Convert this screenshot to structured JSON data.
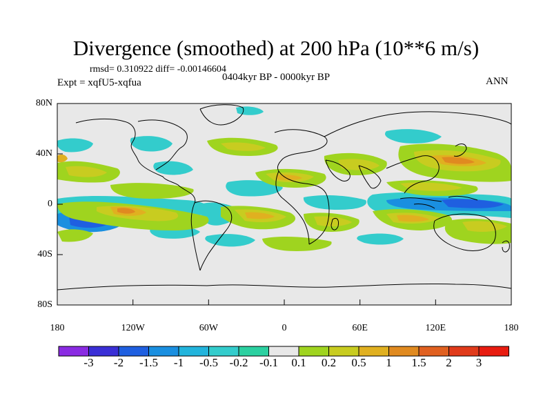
{
  "title": "Divergence (smoothed) at 200 hPa (10**6 m/s)",
  "stats": "rmsd= 0.310922 diff= -0.00146604",
  "experiment": "Expt = xqfU5-xqfua",
  "period": "0404kyr BP - 0000kyr BP",
  "season": "ANN",
  "lat_labels": [
    "80N",
    "40N",
    "0",
    "40S",
    "80S"
  ],
  "lon_labels": [
    "180",
    "120W",
    "60W",
    "0",
    "60E",
    "120E",
    "180"
  ],
  "colorbar": {
    "labels": [
      "-3",
      "-2",
      "-1.5",
      "-1",
      "-0.5",
      "-0.2",
      "-0.1",
      "0.1",
      "0.2",
      "0.5",
      "1",
      "1.5",
      "2",
      "3"
    ],
    "colors": [
      "#8a2be2",
      "#3a2fd6",
      "#1f5fe0",
      "#1a8fe0",
      "#22b4dc",
      "#33cccc",
      "#2bd0a0",
      "#e8e8e8",
      "#9fd41f",
      "#c8cc20",
      "#e0b020",
      "#e08a20",
      "#e06020",
      "#e03a1a",
      "#e81c10"
    ]
  },
  "field_colors": {
    "background": "#e8e8e8",
    "neg_light": "#33cccc",
    "neg_mid": "#1a8fe0",
    "neg_strong": "#1f5fe0",
    "pos_light": "#9fd41f",
    "pos_mid": "#c8cc20",
    "pos_strong": "#e0b020",
    "pos_vstrong": "#e08a20"
  }
}
